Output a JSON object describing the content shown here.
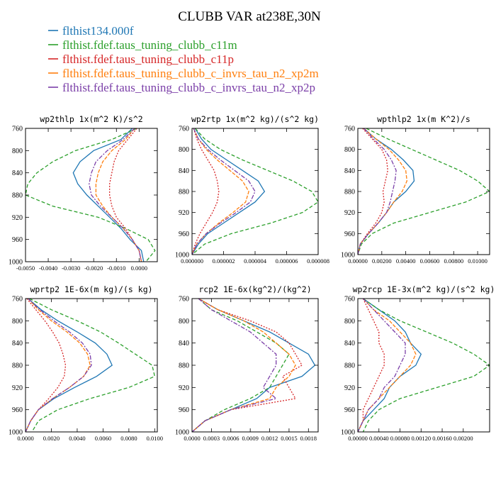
{
  "figure": {
    "title": "CLUBB VAR at238E,30N"
  },
  "legend": [
    {
      "label": "flthist134.000f",
      "color": "#1f77b4"
    },
    {
      "label": "flthist.fdef.taus_tuning_clubb_c11m",
      "color": "#2ca02c"
    },
    {
      "label": "flthist.fdef.taus_tuning_clubb_c11p",
      "color": "#d62728"
    },
    {
      "label": "flthist.fdef.taus_tuning_clubb_c_invrs_tau_n2_xp2m",
      "color": "#ff7f0e"
    },
    {
      "label": "flthist.fdef.taus_tuning_clubb_c_invrs_tau_n2_xp2p",
      "color": "#7b3fa8"
    }
  ],
  "styles": {
    "series_dash": [
      "",
      "5,3",
      "2,2",
      "5,2",
      "6,2,2,2"
    ]
  },
  "chart_data": [
    {
      "type": "line",
      "title": "wp2thlp  1x(m^2 K)/s^2",
      "y": [
        760,
        780,
        800,
        820,
        840,
        860,
        880,
        900,
        920,
        940,
        960,
        980,
        1000
      ],
      "ylim": [
        760,
        1000
      ],
      "yticks": [
        "760",
        "800",
        "840",
        "880",
        "920",
        "960",
        "1000"
      ],
      "xlim": [
        -0.005,
        0.0008
      ],
      "xticks": [
        -0.005,
        -0.004,
        -0.003,
        -0.002,
        -0.001,
        0.0
      ],
      "xticklabels": [
        "-0.0050",
        "-0.0040",
        "-0.0030",
        "-0.0020",
        "-0.0010",
        "0.0000"
      ],
      "series": [
        {
          "values": [
            -0.0003,
            -0.0008,
            -0.002,
            -0.0026,
            -0.0029,
            -0.0027,
            -0.0023,
            -0.0018,
            -0.0013,
            -0.0008,
            -0.0004,
            0.0001,
            0.0002
          ]
        },
        {
          "values": [
            -0.0001,
            -0.0012,
            -0.0028,
            -0.0038,
            -0.0045,
            -0.0049,
            -0.005,
            -0.0038,
            -0.0018,
            -0.0006,
            0.0004,
            0.0007,
            0.0003
          ]
        },
        {
          "values": [
            -0.0001,
            -0.0005,
            -0.0009,
            -0.0011,
            -0.0012,
            -0.0013,
            -0.0013,
            -0.0012,
            -0.001,
            -0.0006,
            -0.0003,
            0.0,
            0.0001
          ]
        },
        {
          "values": [
            -0.0002,
            -0.0006,
            -0.0012,
            -0.0016,
            -0.0018,
            -0.0019,
            -0.0019,
            -0.0016,
            -0.0012,
            -0.0007,
            -0.0003,
            0.0,
            0.0001
          ]
        },
        {
          "values": [
            -0.0002,
            -0.0007,
            -0.0014,
            -0.0019,
            -0.0021,
            -0.0022,
            -0.0021,
            -0.0017,
            -0.0012,
            -0.0007,
            -0.0003,
            0.0,
            0.0001
          ]
        }
      ]
    },
    {
      "type": "line",
      "title": "wp2rtp  1x(m^2 kg)/(s^2 kg)",
      "y": [
        760,
        780,
        800,
        820,
        840,
        860,
        880,
        900,
        920,
        940,
        960,
        980,
        1000
      ],
      "ylim": [
        760,
        1000
      ],
      "yticks": [
        "760",
        "800",
        "840",
        "880",
        "920",
        "960",
        "1000"
      ],
      "xlim": [
        0,
        8e-06
      ],
      "xticks": [
        0,
        2e-06,
        4e-06,
        6e-06,
        8e-06
      ],
      "xticklabels": [
        "0.000000",
        "0.000002",
        "0.000004",
        "0.000006",
        "0.000008"
      ],
      "series": [
        {
          "values": [
            2e-07,
            6e-07,
            1.2e-06,
            2.2e-06,
            3.2e-06,
            4.2e-06,
            4.6e-06,
            4e-06,
            3e-06,
            2e-06,
            1e-06,
            4e-07,
            0.0
          ]
        },
        {
          "values": [
            2e-07,
            8e-07,
            1.8e-06,
            3.2e-06,
            4.8e-06,
            6.4e-06,
            7.6e-06,
            8e-06,
            7e-06,
            5e-06,
            2.5e-06,
            8e-07,
            0.0
          ]
        },
        {
          "values": [
            1e-07,
            3e-07,
            6e-07,
            1e-06,
            1.4e-06,
            1.6e-06,
            1.7e-06,
            1.6e-06,
            1.3e-06,
            9e-07,
            5e-07,
            2e-07,
            0.0
          ]
        },
        {
          "values": [
            1e-07,
            4e-07,
            9e-07,
            1.6e-06,
            2.4e-06,
            3.2e-06,
            3.6e-06,
            3.4e-06,
            2.6e-06,
            1.7e-06,
            9e-07,
            3e-07,
            0.0
          ]
        },
        {
          "values": [
            1e-07,
            4e-07,
            1e-06,
            1.8e-06,
            2.7e-06,
            3.6e-06,
            4e-06,
            3.7e-06,
            2.8e-06,
            1.8e-06,
            9e-07,
            3e-07,
            0.0
          ]
        }
      ]
    },
    {
      "type": "line",
      "title": "wpthlp2  1x(m K^2)/s",
      "y": [
        760,
        780,
        800,
        820,
        840,
        860,
        880,
        900,
        920,
        940,
        960,
        980,
        1000
      ],
      "ylim": [
        760,
        1000
      ],
      "yticks": [
        "760",
        "800",
        "840",
        "880",
        "920",
        "960",
        "1000"
      ],
      "xlim": [
        0,
        0.011
      ],
      "xticks": [
        0,
        0.002,
        0.004,
        0.006,
        0.008,
        0.01
      ],
      "xticklabels": [
        "0.00000",
        "0.00200",
        "0.00400",
        "0.00600",
        "0.00800",
        "0.01000"
      ],
      "series": [
        {
          "values": [
            0.0005,
            0.0015,
            0.0028,
            0.0038,
            0.0046,
            0.0047,
            0.004,
            0.003,
            0.0024,
            0.0017,
            0.0009,
            0.0002,
            0.0
          ]
        },
        {
          "values": [
            0.0007,
            0.0025,
            0.0045,
            0.0065,
            0.0085,
            0.01,
            0.011,
            0.009,
            0.006,
            0.003,
            0.0012,
            0.0003,
            0.0
          ]
        },
        {
          "values": [
            0.0004,
            0.0012,
            0.002,
            0.0024,
            0.0025,
            0.0023,
            0.0021,
            0.0022,
            0.002,
            0.0015,
            0.0008,
            0.0002,
            0.0
          ]
        },
        {
          "values": [
            0.0005,
            0.0015,
            0.0026,
            0.0034,
            0.004,
            0.0041,
            0.0037,
            0.003,
            0.0024,
            0.0017,
            0.0009,
            0.0002,
            0.0
          ]
        },
        {
          "values": [
            0.0005,
            0.0013,
            0.0022,
            0.0028,
            0.0032,
            0.0031,
            0.0029,
            0.0027,
            0.0024,
            0.0017,
            0.0009,
            0.0002,
            0.0
          ]
        }
      ]
    },
    {
      "type": "line",
      "title": "wprtp2  1E-6x(m kg)/(s kg)",
      "y": [
        760,
        780,
        800,
        820,
        840,
        860,
        880,
        900,
        920,
        940,
        960,
        980,
        1000
      ],
      "ylim": [
        760,
        1000
      ],
      "yticks": [
        "760",
        "800",
        "840",
        "880",
        "920",
        "960",
        "1000"
      ],
      "xlim": [
        0,
        0.0102
      ],
      "xticks": [
        0,
        0.002,
        0.004,
        0.006,
        0.008,
        0.01
      ],
      "xticklabels": [
        "0.0000",
        "0.0020",
        "0.0040",
        "0.0060",
        "0.0080",
        "0.0100"
      ],
      "series": [
        {
          "values": [
            0.0002,
            0.0012,
            0.0025,
            0.004,
            0.0054,
            0.0063,
            0.0067,
            0.0055,
            0.0038,
            0.0022,
            0.001,
            0.0004,
            0.0
          ]
        },
        {
          "values": [
            0.0003,
            0.002,
            0.004,
            0.0058,
            0.0072,
            0.0085,
            0.0098,
            0.01,
            0.008,
            0.005,
            0.0025,
            0.001,
            0.0005
          ]
        },
        {
          "values": [
            0.0001,
            0.0008,
            0.0015,
            0.0021,
            0.0026,
            0.0029,
            0.0031,
            0.003,
            0.0025,
            0.0018,
            0.001,
            0.0004,
            0.0
          ]
        },
        {
          "values": [
            0.0002,
            0.001,
            0.002,
            0.0032,
            0.0042,
            0.0048,
            0.005,
            0.0045,
            0.0034,
            0.0021,
            0.001,
            0.0004,
            0.0
          ]
        },
        {
          "values": [
            0.0002,
            0.0011,
            0.0022,
            0.0034,
            0.0044,
            0.005,
            0.0051,
            0.0045,
            0.0034,
            0.0021,
            0.001,
            0.0004,
            0.0
          ]
        }
      ]
    },
    {
      "type": "line",
      "title": "rcp2  1E-6x(kg^2)/(kg^2)",
      "y": [
        760,
        780,
        800,
        820,
        840,
        860,
        880,
        900,
        920,
        940,
        960,
        980,
        1000
      ],
      "ylim": [
        760,
        1000
      ],
      "yticks": [
        "760",
        "800",
        "840",
        "880",
        "920",
        "960",
        "1000"
      ],
      "xlim": [
        0,
        0.00195
      ],
      "xticks": [
        0,
        0.0003,
        0.0006,
        0.0009,
        0.0012,
        0.0015,
        0.0018
      ],
      "xticklabels": [
        "0.0000",
        "0.0003",
        "0.0006",
        "0.0009",
        "0.0012",
        "0.0015",
        "0.0018"
      ],
      "series": [
        {
          "values": [
            0.0001,
            0.0004,
            0.0008,
            0.0012,
            0.0015,
            0.0018,
            0.0019,
            0.0017,
            0.0012,
            0.001,
            0.0006,
            0.0002,
            0.0
          ]
        },
        {
          "values": [
            0.0001,
            0.0003,
            0.0007,
            0.001,
            0.0013,
            0.0015,
            0.0014,
            0.0013,
            0.0012,
            0.0009,
            0.0005,
            0.0002,
            0.0
          ]
        },
        {
          "values": [
            0.0001,
            0.0004,
            0.0009,
            0.0013,
            0.0015,
            0.0016,
            0.0017,
            0.0014,
            0.0015,
            0.0016,
            0.0006,
            0.0002,
            0.0
          ]
        },
        {
          "values": [
            0.0001,
            0.0004,
            0.0008,
            0.0011,
            0.0013,
            0.0015,
            0.0016,
            0.0015,
            0.0013,
            0.0012,
            0.0006,
            0.0002,
            0.0
          ]
        },
        {
          "values": [
            0.0001,
            0.0003,
            0.0006,
            0.0009,
            0.0011,
            0.0013,
            0.0013,
            0.0012,
            0.0011,
            0.0013,
            0.0006,
            0.0002,
            0.0
          ]
        }
      ]
    },
    {
      "type": "line",
      "title": "wp2rcp  1E-3x(m^2 kg)/(s^2 kg)",
      "y": [
        760,
        780,
        800,
        820,
        840,
        860,
        880,
        900,
        920,
        940,
        960,
        980,
        1000
      ],
      "ylim": [
        760,
        1000
      ],
      "yticks": [
        "760",
        "800",
        "840",
        "880",
        "920",
        "960",
        "1000"
      ],
      "xlim": [
        0,
        0.0025
      ],
      "xticks": [
        0,
        0.0004,
        0.0008,
        0.0012,
        0.0016,
        0.002
      ],
      "xticklabels": [
        "0.00000",
        "0.00040",
        "0.00080",
        "0.00120",
        "0.00160",
        "0.00200"
      ],
      "series": [
        {
          "values": [
            0.0001,
            0.0004,
            0.0007,
            0.0009,
            0.001,
            0.0012,
            0.0011,
            0.0008,
            0.0006,
            0.0005,
            0.0003,
            0.0001,
            0.0
          ]
        },
        {
          "values": [
            0.0001,
            0.0004,
            0.0008,
            0.0013,
            0.0018,
            0.0022,
            0.0025,
            0.0022,
            0.0015,
            0.0008,
            0.0004,
            0.0002,
            0.0001
          ]
        },
        {
          "values": [
            0.0001,
            0.0002,
            0.0003,
            0.0004,
            0.0004,
            0.0005,
            0.0005,
            0.0004,
            0.0003,
            0.0002,
            0.0001,
            0.0001,
            0.0
          ]
        },
        {
          "values": [
            0.0001,
            0.0003,
            0.0006,
            0.0008,
            0.001,
            0.0011,
            0.001,
            0.0008,
            0.0006,
            0.0004,
            0.0002,
            0.0001,
            0.0
          ]
        },
        {
          "values": [
            0.0001,
            0.0003,
            0.0005,
            0.0007,
            0.0009,
            0.0009,
            0.0008,
            0.0007,
            0.0005,
            0.0004,
            0.0002,
            0.0001,
            0.0
          ]
        }
      ]
    }
  ]
}
